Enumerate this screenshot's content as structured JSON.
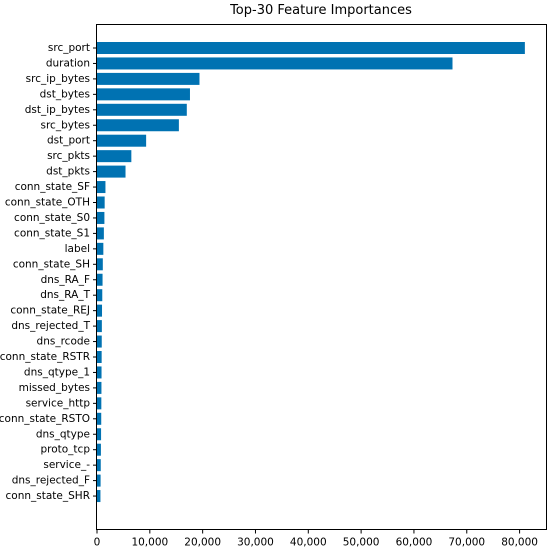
{
  "chart_data": {
    "type": "bar",
    "orientation": "horizontal",
    "title": "Top-30 Feature Importances",
    "xlabel": "",
    "ylabel": "",
    "xlim": [
      0,
      85000
    ],
    "x_ticks": [
      0,
      10000,
      20000,
      30000,
      40000,
      50000,
      60000,
      70000,
      80000
    ],
    "x_tick_labels": [
      "0",
      "10,000",
      "20,000",
      "30,000",
      "40,000",
      "50,000",
      "60,000",
      "70,000",
      "80,000"
    ],
    "grid": false,
    "bar_color": "#0072b2",
    "categories": [
      "src_port",
      "duration",
      "src_ip_bytes",
      "dst_bytes",
      "dst_ip_bytes",
      "src_bytes",
      "dst_port",
      "src_pkts",
      "dst_pkts",
      "conn_state_SF",
      "conn_state_OTH",
      "conn_state_S0",
      "conn_state_S1",
      "label",
      "conn_state_SH",
      "dns_RA_F",
      "dns_RA_T",
      "conn_state_REJ",
      "dns_rejected_T",
      "dns_rcode",
      "conn_state_RSTR",
      "dns_qtype_1",
      "missed_bytes",
      "service_http",
      "conn_state_RSTO",
      "dns_qtype",
      "proto_tcp",
      "service_-",
      "dns_rejected_F",
      "conn_state_SHR"
    ],
    "values": [
      81000,
      67300,
      19400,
      17600,
      17000,
      15500,
      9300,
      6500,
      5400,
      1600,
      1450,
      1400,
      1300,
      1200,
      1100,
      1050,
      1000,
      950,
      920,
      900,
      880,
      860,
      840,
      820,
      800,
      770,
      740,
      710,
      680,
      650
    ]
  }
}
